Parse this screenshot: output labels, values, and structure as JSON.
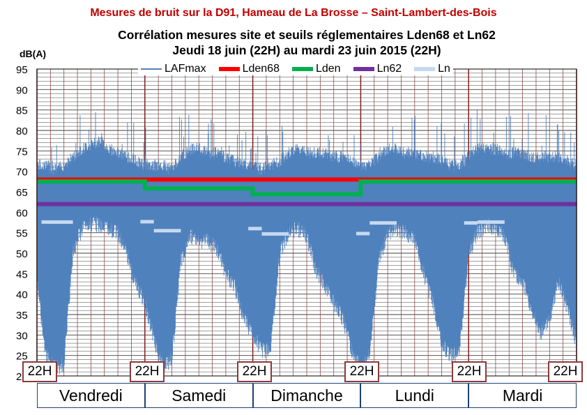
{
  "caption": "Mesures de bruit sur la D91, Hameau de La Brosse – Saint-Lambert-des-Bois",
  "chart_data": {
    "type": "line",
    "title": "Corrélation mesures site et seuils réglementaires Lden68 et Ln62",
    "subtitle": "Jeudi 18 juin (22H) au mardi 23 juin 2015 (22H)",
    "ylabel": "dB(A)",
    "ylim": [
      20,
      95
    ],
    "yticks": [
      20,
      25,
      30,
      35,
      40,
      45,
      50,
      55,
      60,
      65,
      70,
      75,
      80,
      85,
      90,
      95
    ],
    "ytick_labels": [
      "20",
      "25",
      "30",
      "35",
      "40",
      "45",
      "50",
      "55",
      "60",
      "65",
      "70",
      "75",
      "80",
      "85",
      "90",
      "95"
    ],
    "x_unit": "hours since Thursday 18 June 22H",
    "xlim": [
      0,
      120
    ],
    "grid": true,
    "legend_position": "top",
    "series": [
      {
        "name": "LAFmax",
        "color": "#4f81bd",
        "type": "noise",
        "envelope_x": [
          0,
          2,
          4,
          6,
          8,
          10,
          12,
          14,
          16,
          18,
          20,
          22,
          24,
          26,
          28,
          30,
          32,
          34,
          36,
          38,
          40,
          42,
          44,
          46,
          48,
          50,
          52,
          54,
          56,
          58,
          60,
          62,
          64,
          66,
          68,
          70,
          72,
          74,
          76,
          78,
          80,
          82,
          84,
          86,
          88,
          90,
          92,
          94,
          96,
          98,
          100,
          102,
          104,
          106,
          108,
          110,
          112,
          114,
          116,
          118,
          120
        ],
        "envelope_low": [
          45,
          27,
          24,
          25,
          52,
          58,
          59,
          59,
          58,
          57,
          52,
          44,
          40,
          31,
          24,
          26,
          50,
          56,
          55,
          55,
          53,
          47,
          44,
          36,
          32,
          28,
          29,
          52,
          57,
          58,
          56,
          48,
          44,
          40,
          36,
          28,
          24,
          27,
          50,
          57,
          58,
          57,
          55,
          47,
          40,
          30,
          27,
          28,
          52,
          57,
          59,
          58,
          56,
          47,
          45,
          38,
          32,
          36,
          45,
          38,
          30
        ],
        "envelope_high": [
          70,
          70,
          69,
          70,
          72,
          74,
          75,
          76,
          74,
          73,
          72,
          71,
          70,
          70,
          70,
          69,
          72,
          74,
          74,
          73,
          73,
          72,
          71,
          70,
          70,
          69,
          70,
          71,
          73,
          74,
          73,
          73,
          73,
          72,
          72,
          71,
          70,
          70,
          72,
          74,
          74,
          73,
          73,
          72,
          72,
          71,
          70,
          70,
          72,
          74,
          74,
          74,
          73,
          73,
          73,
          72,
          72,
          72,
          72,
          71,
          70
        ]
      },
      {
        "name": "Lden68",
        "color": "#ff0000",
        "x": [
          0,
          120
        ],
        "y": [
          68,
          68
        ]
      },
      {
        "name": "Lden",
        "color": "#00b050",
        "x": [
          0,
          24,
          24,
          48,
          48,
          72,
          72,
          120
        ],
        "y": [
          67.5,
          67.5,
          65.8,
          65.8,
          64.4,
          64.4,
          67.5,
          67.5
        ]
      },
      {
        "name": "Ln62",
        "color": "#7030a0",
        "x": [
          0,
          120
        ],
        "y": [
          62,
          62
        ]
      },
      {
        "name": "Ln",
        "color": "#c6d9f1",
        "segments": [
          {
            "x": [
              1,
              8
            ],
            "y": [
              57.6,
              57.6
            ]
          },
          {
            "x": [
              23,
              26
            ],
            "y": [
              57.7,
              57.7
            ]
          },
          {
            "x": [
              26,
              32
            ],
            "y": [
              55.5,
              55.5
            ]
          },
          {
            "x": [
              47,
              50
            ],
            "y": [
              56.0,
              56.0
            ]
          },
          {
            "x": [
              50,
              56
            ],
            "y": [
              54.7,
              54.7
            ]
          },
          {
            "x": [
              71,
              74
            ],
            "y": [
              54.8,
              54.8
            ]
          },
          {
            "x": [
              74,
              80
            ],
            "y": [
              57.4,
              57.4
            ]
          },
          {
            "x": [
              95,
              98
            ],
            "y": [
              57.4,
              57.4
            ]
          },
          {
            "x": [
              98,
              104
            ],
            "y": [
              57.6,
              57.6
            ]
          }
        ]
      }
    ],
    "legend": [
      "LAFmax",
      "Lden68",
      "Lden",
      "Ln62",
      "Ln"
    ],
    "hour_labels": [
      "22H",
      "22H",
      "22H",
      "22H",
      "22H",
      "22H"
    ],
    "day_labels": [
      "Vendredi",
      "Samedi",
      "Dimanche",
      "Lundi",
      "Mardi"
    ]
  }
}
